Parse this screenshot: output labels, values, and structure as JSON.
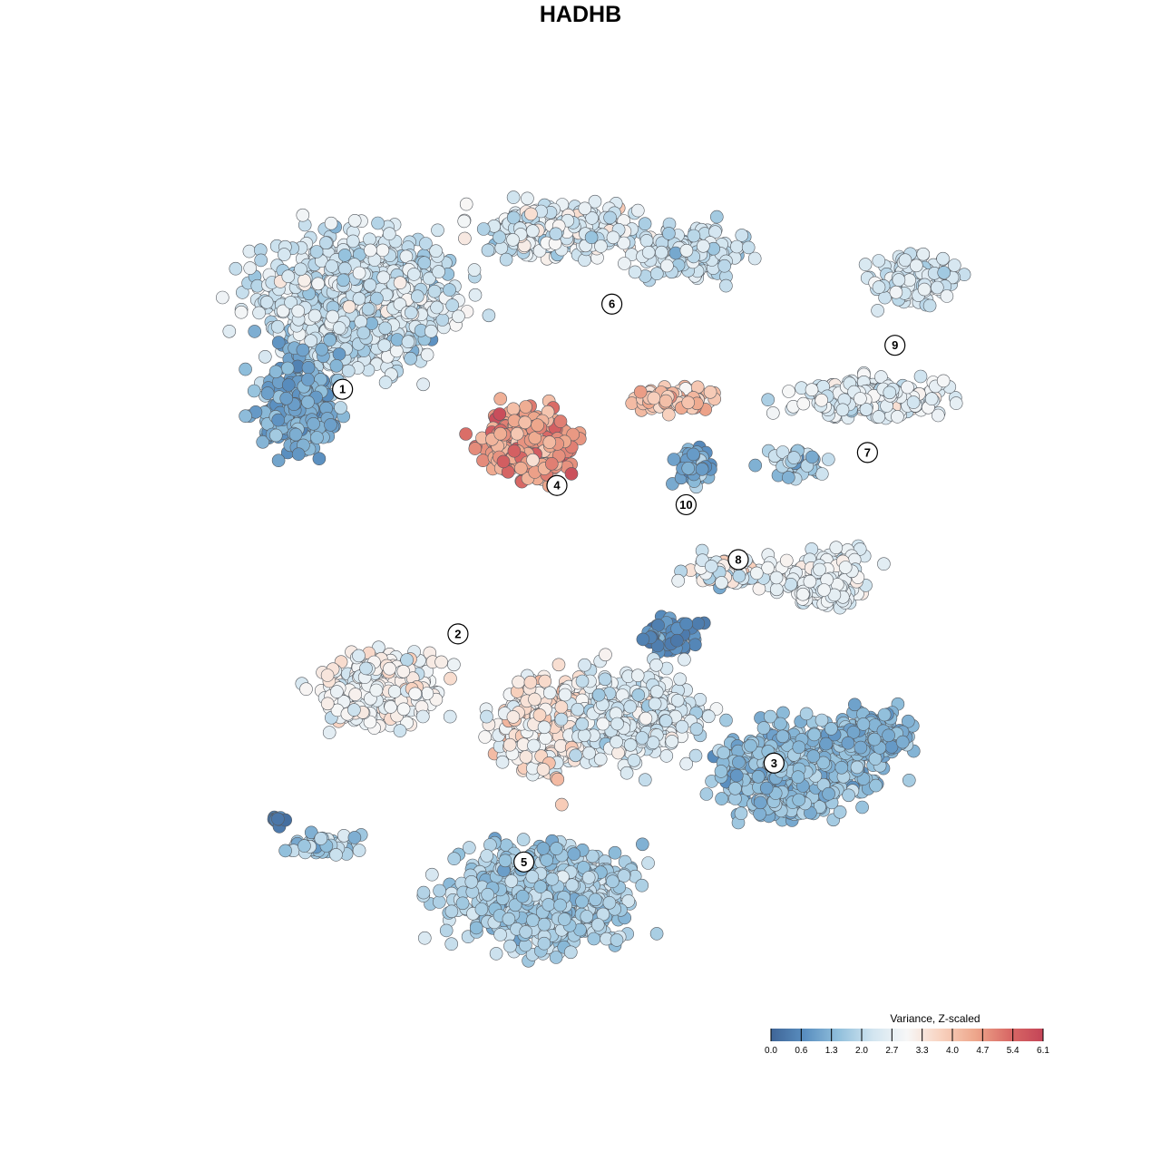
{
  "chart_data": {
    "type": "scatter",
    "title": "HADHB",
    "xlabel": "",
    "ylabel": "",
    "grid": false,
    "color_scale": {
      "title": "Variance, Z-scaled",
      "min": 0.0,
      "max": 6.1,
      "ticks": [
        "0.0",
        "0.6",
        "1.3",
        "2.0",
        "2.7",
        "3.3",
        "4.0",
        "4.7",
        "5.4",
        "6.1"
      ],
      "colors": [
        "#3f6597",
        "#5a8fc0",
        "#92c0dc",
        "#d2e5f0",
        "#f7f7f7",
        "#f8d2bf",
        "#eea78c",
        "#d96a66",
        "#c44457"
      ],
      "legend_position": "bottom-right"
    },
    "clusters": [
      {
        "label": "1",
        "x": -7.8,
        "y": 6.1,
        "mean_expression": 2.2
      },
      {
        "label": "2",
        "x": -3.6,
        "y": -2.8,
        "mean_expression": 3.1
      },
      {
        "label": "3",
        "x": 7.9,
        "y": -7.5,
        "mean_expression": 1.5
      },
      {
        "label": "4",
        "x": 0.0,
        "y": 2.6,
        "mean_expression": 5.0
      },
      {
        "label": "5",
        "x": -1.2,
        "y": -11.1,
        "mean_expression": 1.9
      },
      {
        "label": "6",
        "x": 2.0,
        "y": 9.2,
        "mean_expression": 3.0
      },
      {
        "label": "7",
        "x": 11.3,
        "y": 3.8,
        "mean_expression": 2.5
      },
      {
        "label": "8",
        "x": 6.6,
        "y": -0.1,
        "mean_expression": 2.3
      },
      {
        "label": "9",
        "x": 12.3,
        "y": 7.7,
        "mean_expression": 2.4
      },
      {
        "label": "10",
        "x": 4.7,
        "y": 1.9,
        "mean_expression": 1.0
      }
    ]
  }
}
